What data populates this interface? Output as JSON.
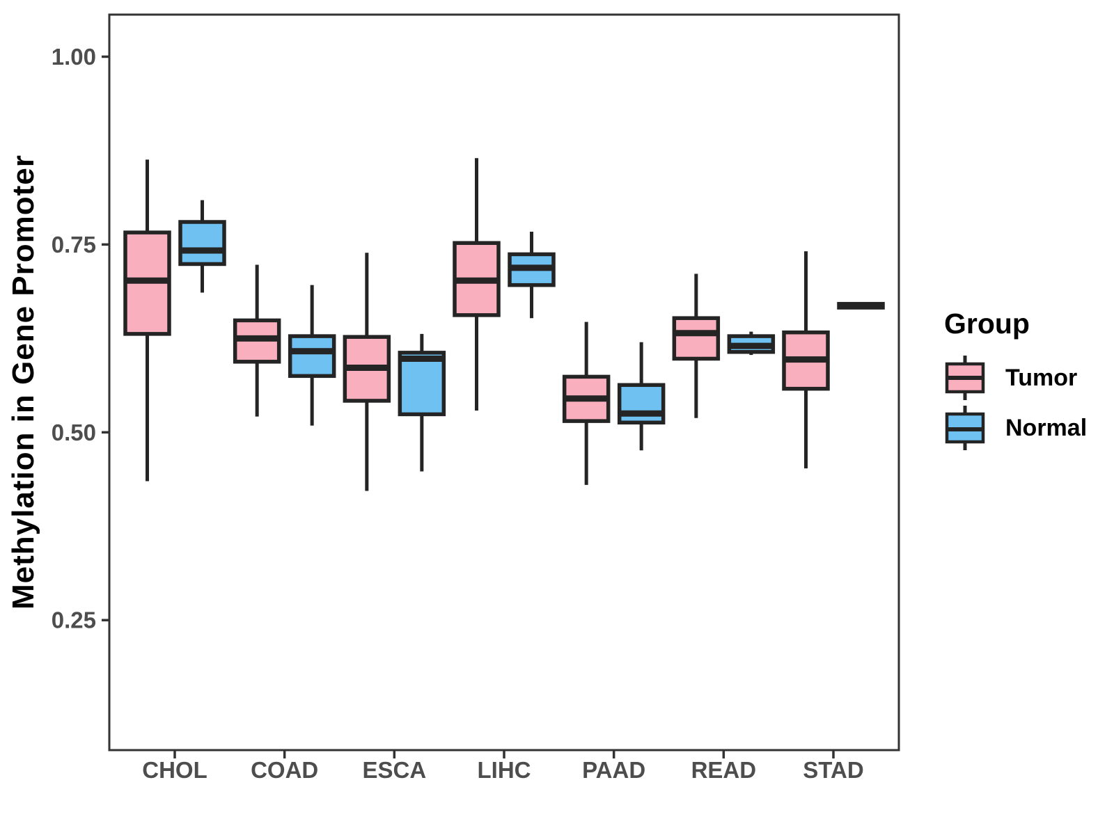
{
  "chart_data": {
    "type": "boxplot",
    "title": "",
    "xlabel": "",
    "ylabel": "Methylation in Gene Promoter",
    "categories": [
      "CHOL",
      "COAD",
      "ESCA",
      "LIHC",
      "PAAD",
      "READ",
      "STAD"
    ],
    "y_ticks": {
      "values": [
        0.25,
        0.5,
        0.75,
        1.0
      ],
      "labels": [
        "0.25",
        "0.50",
        "0.75",
        "1.00"
      ]
    },
    "ylim": [
      0.077,
      1.056
    ],
    "grid": "off",
    "legend": {
      "title": "Group",
      "position": "right",
      "entries": [
        {
          "label": "Tumor",
          "fill": "#FAAFBE"
        },
        {
          "label": "Normal",
          "fill": "#6EC1F1"
        }
      ]
    },
    "series": [
      {
        "name": "Tumor",
        "fill": "#FAAFBE",
        "boxes": [
          {
            "category": "CHOL",
            "min": 0.435,
            "q1": 0.631,
            "median": 0.702,
            "q3": 0.766,
            "max": 0.863
          },
          {
            "category": "COAD",
            "min": 0.521,
            "q1": 0.594,
            "median": 0.625,
            "q3": 0.649,
            "max": 0.723
          },
          {
            "category": "ESCA",
            "min": 0.422,
            "q1": 0.542,
            "median": 0.586,
            "q3": 0.627,
            "max": 0.739
          },
          {
            "category": "LIHC",
            "min": 0.529,
            "q1": 0.656,
            "median": 0.702,
            "q3": 0.752,
            "max": 0.865
          },
          {
            "category": "PAAD",
            "min": 0.43,
            "q1": 0.515,
            "median": 0.545,
            "q3": 0.574,
            "max": 0.647
          },
          {
            "category": "READ",
            "min": 0.519,
            "q1": 0.598,
            "median": 0.632,
            "q3": 0.652,
            "max": 0.711
          },
          {
            "category": "STAD",
            "min": 0.452,
            "q1": 0.558,
            "median": 0.597,
            "q3": 0.633,
            "max": 0.741
          }
        ]
      },
      {
        "name": "Normal",
        "fill": "#6EC1F1",
        "boxes": [
          {
            "category": "CHOL",
            "min": 0.686,
            "q1": 0.724,
            "median": 0.742,
            "q3": 0.78,
            "max": 0.809
          },
          {
            "category": "COAD",
            "min": 0.509,
            "q1": 0.575,
            "median": 0.608,
            "q3": 0.628,
            "max": 0.696
          },
          {
            "category": "ESCA",
            "min": 0.448,
            "q1": 0.524,
            "median": 0.598,
            "q3": 0.606,
            "max": 0.631
          },
          {
            "category": "LIHC",
            "min": 0.652,
            "q1": 0.696,
            "median": 0.719,
            "q3": 0.737,
            "max": 0.767
          },
          {
            "category": "PAAD",
            "min": 0.476,
            "q1": 0.513,
            "median": 0.525,
            "q3": 0.563,
            "max": 0.62
          },
          {
            "category": "READ",
            "min": 0.603,
            "q1": 0.607,
            "median": 0.615,
            "q3": 0.628,
            "max": 0.634
          },
          {
            "category": "STAD",
            "min": 0.665,
            "q1": 0.666,
            "median": 0.668,
            "q3": 0.671,
            "max": 0.672
          }
        ]
      }
    ],
    "colors": {
      "box_outline": "#242424",
      "axis_text": "#4D4D4D",
      "panel_border": "#333333"
    }
  }
}
